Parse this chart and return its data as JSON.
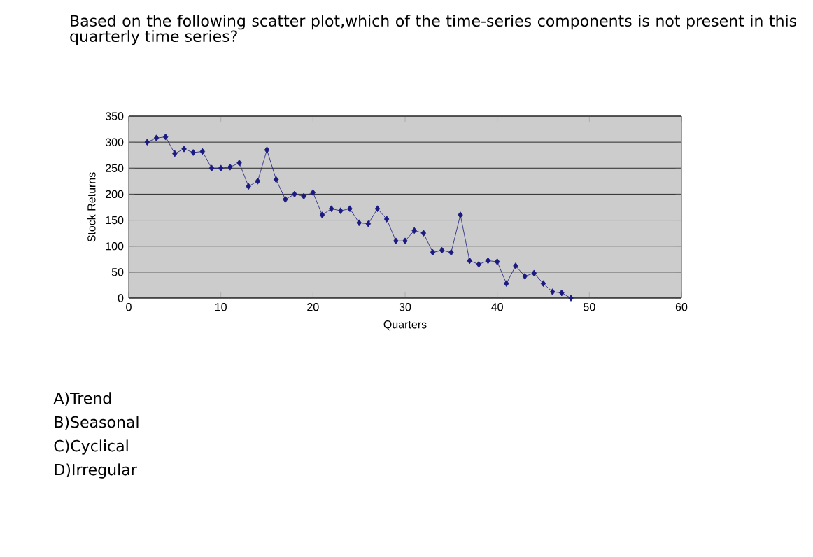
{
  "chart_data": {
    "type": "line",
    "title": "Based on the following scatter plot,which of the time-series components is not present in this quarterly time series?",
    "xlabel": "Quarters",
    "ylabel": "Stock Returns",
    "x": [
      2,
      3,
      4,
      5,
      6,
      7,
      8,
      9,
      10,
      11,
      12,
      13,
      14,
      15,
      16,
      17,
      18,
      19,
      20,
      21,
      22,
      23,
      24,
      25,
      26,
      27,
      28,
      29,
      30,
      31,
      32,
      33,
      34,
      35,
      36,
      37,
      38,
      39,
      40,
      41,
      42,
      43,
      44,
      45,
      46,
      47,
      48
    ],
    "series": [
      {
        "color": "#1a1a80",
        "values": [
          300,
          308,
          310,
          278,
          287,
          280,
          282,
          250,
          250,
          252,
          260,
          215,
          225,
          285,
          228,
          190,
          200,
          196,
          203,
          160,
          172,
          168,
          172,
          145,
          143,
          172,
          152,
          110,
          110,
          130,
          125,
          88,
          92,
          88,
          160,
          72,
          65,
          72,
          70,
          28,
          62,
          42,
          48,
          28,
          12,
          10,
          0
        ]
      }
    ],
    "xlim": [
      0,
      60
    ],
    "xticks": [
      0,
      10,
      20,
      30,
      40,
      50,
      60
    ],
    "ylim": [
      0,
      350
    ],
    "yticks": [
      0,
      50,
      100,
      150,
      200,
      250,
      300,
      350
    ],
    "grid": "y",
    "marker": "diamond",
    "line_style": "solid",
    "annotations": [
      "A)Trend",
      "B)Seasonal",
      "C)Cyclical",
      "D)Irregular"
    ]
  }
}
